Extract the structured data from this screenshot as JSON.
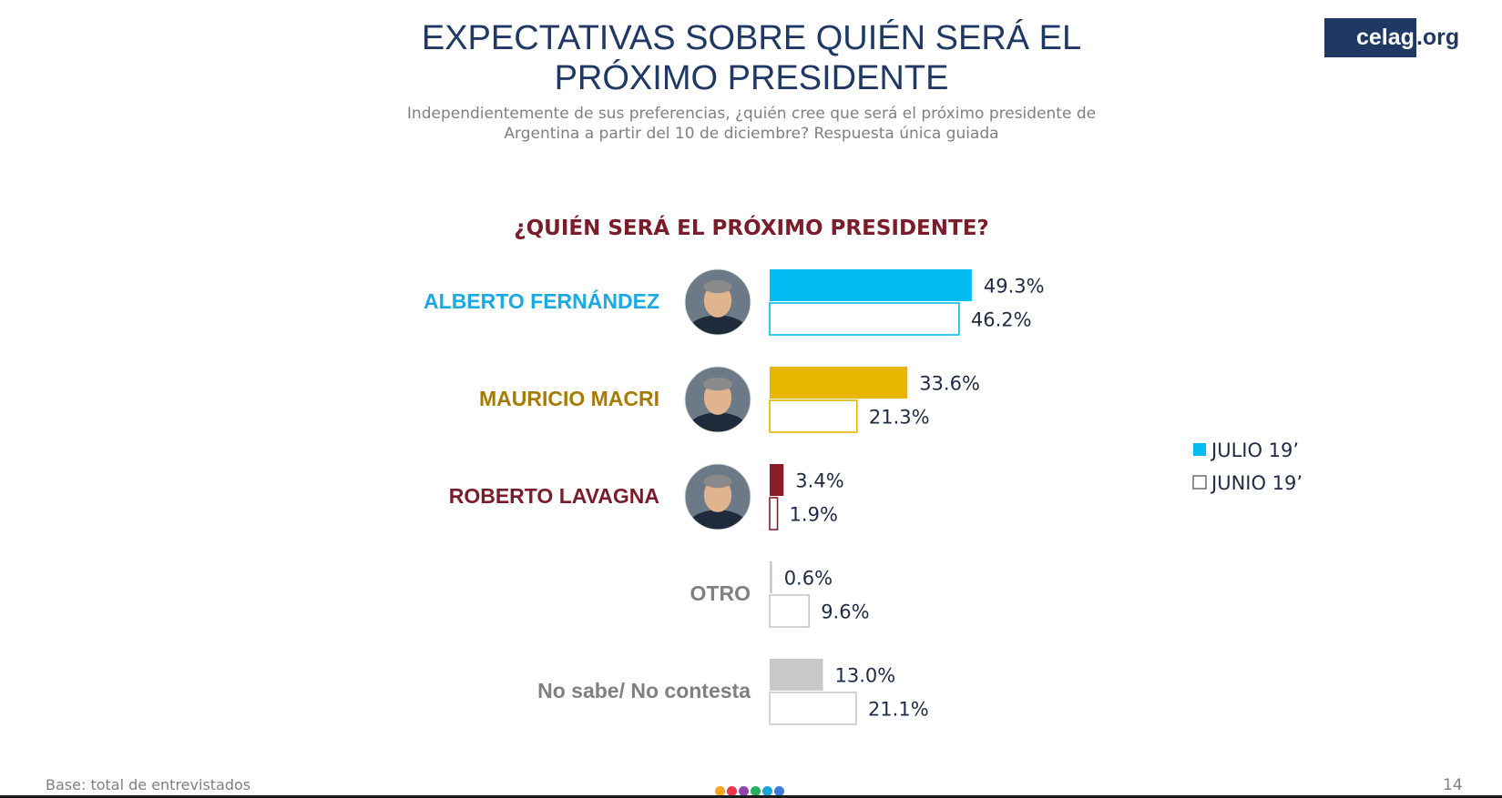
{
  "slide": {
    "title_line1": "EXPECTATIVAS SOBRE QUIÉN SERÁ EL",
    "title_line2": "PRÓXIMO PRESIDENTE",
    "subtitle_line1": "Independientemente de sus preferencias, ¿quién cree que será el próximo presidente de",
    "subtitle_line2": "Argentina a partir del 10 de diciembre? Respuesta única guiada",
    "logo_main": "celag",
    "logo_tld": ".org",
    "footnote": "Base: total de entrevistados",
    "page_number": "14",
    "dot_colors": [
      "#f5a623",
      "#e8384f",
      "#8e44ad",
      "#27ae60",
      "#16a8d9",
      "#3b7bd6"
    ]
  },
  "chart_data": {
    "type": "bar",
    "orientation": "horizontal",
    "title": "¿QUIÉN SERÁ EL PRÓXIMO PRESIDENTE?",
    "categories": [
      "ALBERTO FERNÁNDEZ",
      "MAURICIO MACRI",
      "ROBERTO LAVAGNA",
      "OTRO",
      "No sabe/ No contesta"
    ],
    "category_colors": [
      "#00bcf2",
      "#e8b600",
      "#8b1c2c",
      "#c8c8c8",
      "#c8c8c8"
    ],
    "label_colors": [
      "#1aa9e0",
      "#a67c00",
      "#7b1c2a",
      "#808080",
      "#808080"
    ],
    "photos": [
      "alberto-fernandez-photo",
      "mauricio-macri-photo",
      "roberto-lavagna-photo",
      null,
      null
    ],
    "series": [
      {
        "name": "JULIO 19’",
        "style": "filled",
        "values": [
          49.3,
          33.6,
          3.4,
          0.6,
          13.0
        ],
        "labels": [
          "49.3%",
          "33.6%",
          "3.4%",
          "0.6%",
          "13.0%"
        ]
      },
      {
        "name": "JUNIO 19’",
        "style": "outline",
        "values": [
          46.2,
          21.3,
          1.9,
          9.6,
          21.1
        ],
        "labels": [
          "46.2%",
          "21.3%",
          "1.9%",
          "9.6%",
          "21.1%"
        ]
      }
    ],
    "xlim": [
      0,
      100
    ],
    "unit": "%",
    "legend_position": "right",
    "legend_colors": [
      "#00bcf2",
      "#ffffff"
    ],
    "grid": false
  }
}
